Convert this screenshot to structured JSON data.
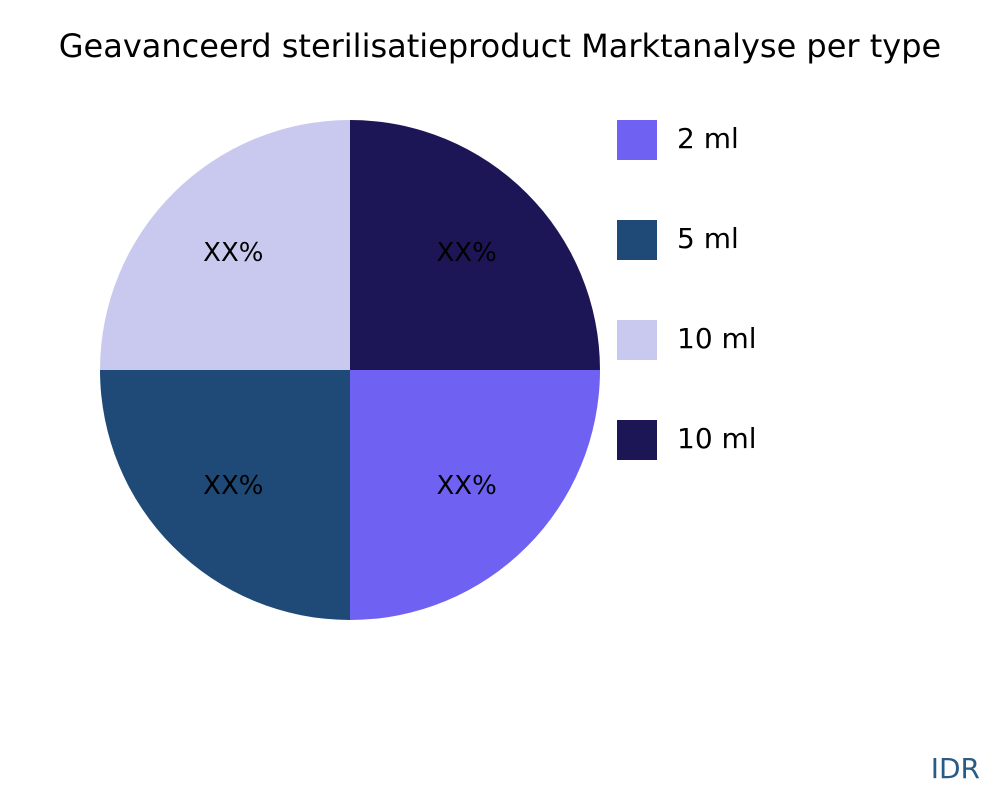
{
  "chart_data": {
    "type": "pie",
    "title": "Geavanceerd sterilisatieproduct Marktanalyse per type",
    "categories": [
      "2 ml",
      "5 ml",
      "10 ml",
      "10 ml"
    ],
    "values": [
      25,
      25,
      25,
      25
    ],
    "value_labels": [
      "XX%",
      "XX%",
      "XX%",
      "XX%"
    ],
    "colors": [
      "#6f61f2",
      "#1f4a78",
      "#c9c9f0",
      "#1c1656"
    ],
    "legend": "right",
    "watermark": "IDR"
  }
}
